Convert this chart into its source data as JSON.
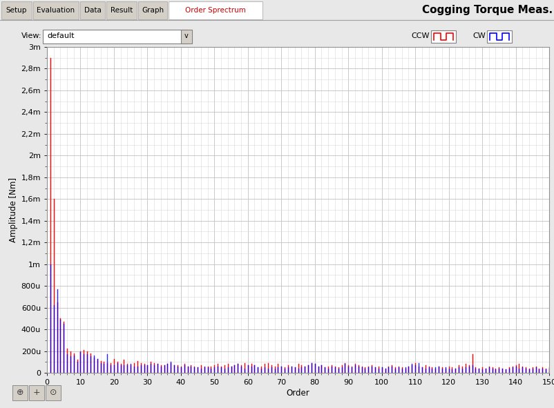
{
  "title": "Cogging Torque Meas.",
  "ylabel": "Amplitude [Nm]",
  "xlabel": "Order",
  "xlim": [
    0,
    150
  ],
  "ylim": [
    0,
    0.003
  ],
  "yticks": [
    0,
    0.0002,
    0.0004,
    0.0006,
    0.0008,
    0.001,
    0.0012,
    0.0014,
    0.0016,
    0.0018,
    0.002,
    0.0022,
    0.0024,
    0.0026,
    0.0028,
    0.003
  ],
  "ytick_labels": [
    "0",
    "200u",
    "400u",
    "600u",
    "800u",
    "1m",
    "1,2m",
    "1,4m",
    "1,6m",
    "1,8m",
    "2m",
    "2,2m",
    "2,4m",
    "2,6m",
    "2,8m",
    "3m"
  ],
  "xticks": [
    0,
    10,
    20,
    30,
    40,
    50,
    60,
    70,
    80,
    90,
    100,
    110,
    120,
    130,
    140,
    150
  ],
  "bg_color": "#e8e8e8",
  "toolbar_bg": "#d4d0c8",
  "tab_active_bg": "#ffffff",
  "tab_inactive_bg": "#d4d0c8",
  "plot_bg": "#ffffff",
  "grid_color_major": "#c0c0c0",
  "grid_color_minor": "#d8d8d8",
  "ccw_color": "#ff0000",
  "cw_color": "#0000ff",
  "tab_labels": [
    "Setup",
    "Evaluation",
    "Data",
    "Result",
    "Graph",
    "Order Sprectrum"
  ],
  "view_value": "default",
  "ccw_label": "CCW",
  "cw_label": "CW",
  "ccw_data": [
    0.0029,
    0.0016,
    0.00065,
    0.0005,
    0.00047,
    0.00022,
    0.0002,
    0.00018,
    0.00012,
    0.0002,
    0.00021,
    0.0002,
    0.00018,
    0.00014,
    0.00013,
    0.00011,
    0.0001,
    9e-05,
    9e-05,
    0.00013,
    0.0001,
    8e-05,
    0.00012,
    8e-05,
    7e-05,
    9e-05,
    0.00011,
    9e-05,
    8e-05,
    7e-05,
    0.0001,
    9e-05,
    8e-05,
    7e-05,
    7e-05,
    8e-05,
    9e-05,
    7e-05,
    7e-05,
    6e-05,
    8e-05,
    6e-05,
    7e-05,
    6e-05,
    5e-05,
    7e-05,
    5e-05,
    6e-05,
    6e-05,
    7e-05,
    8e-05,
    6e-05,
    7e-05,
    8e-05,
    6e-05,
    7e-05,
    8e-05,
    7e-05,
    9e-05,
    7e-05,
    8e-05,
    7e-05,
    5e-05,
    6e-05,
    8e-05,
    9e-05,
    7e-05,
    6e-05,
    8e-05,
    6e-05,
    5e-05,
    7e-05,
    6e-05,
    5e-05,
    8e-05,
    7e-05,
    6e-05,
    7e-05,
    9e-05,
    8e-05,
    6e-05,
    7e-05,
    5e-05,
    6e-05,
    7e-05,
    6e-05,
    5e-05,
    7e-05,
    9e-05,
    7e-05,
    6e-05,
    8e-05,
    7e-05,
    6e-05,
    5e-05,
    6e-05,
    7e-05,
    5e-05,
    6e-05,
    5e-05,
    4e-05,
    6e-05,
    7e-05,
    5e-05,
    6e-05,
    5e-05,
    4e-05,
    6e-05,
    7e-05,
    9e-05,
    6e-05,
    5e-05,
    7e-05,
    6e-05,
    5e-05,
    4e-05,
    6e-05,
    5e-05,
    4e-05,
    6e-05,
    5e-05,
    4e-05,
    7e-05,
    6e-05,
    8e-05,
    7e-05,
    0.00017,
    5e-05,
    4e-05,
    5e-05,
    4e-05,
    6e-05,
    5e-05,
    4e-05,
    5e-05,
    4e-05,
    3e-05,
    5e-05,
    6e-05,
    7e-05,
    8e-05,
    6e-05,
    5e-05,
    4e-05,
    5e-05,
    6e-05,
    4e-05,
    5e-05,
    4e-05,
    5e-05,
    6e-05
  ],
  "cw_data": [
    0.001,
    0.00062,
    0.00077,
    0.00049,
    0.00045,
    0.00017,
    0.00015,
    0.00016,
    0.0001,
    0.00019,
    0.00017,
    0.00017,
    0.00015,
    0.00016,
    0.00013,
    9e-05,
    8e-05,
    0.00017,
    7e-05,
    7e-05,
    9e-05,
    7e-05,
    7e-05,
    7e-05,
    8e-05,
    6e-05,
    6e-05,
    7e-05,
    7e-05,
    7e-05,
    8e-05,
    7e-05,
    8e-05,
    6e-05,
    7e-05,
    8e-05,
    0.0001,
    7e-05,
    6e-05,
    5e-05,
    7e-05,
    6e-05,
    6e-05,
    5e-05,
    5e-05,
    4e-05,
    6e-05,
    5e-05,
    4e-05,
    5e-05,
    6e-05,
    5e-05,
    4e-05,
    5e-05,
    6e-05,
    7e-05,
    8e-05,
    6e-05,
    4e-05,
    7e-05,
    6e-05,
    7e-05,
    5e-05,
    4e-05,
    5e-05,
    4e-05,
    5e-05,
    4e-05,
    5e-05,
    6e-05,
    4e-05,
    5e-05,
    6e-05,
    5e-05,
    4e-05,
    5e-05,
    6e-05,
    7e-05,
    9e-05,
    8e-05,
    6e-05,
    7e-05,
    5e-05,
    4e-05,
    6e-05,
    5e-05,
    4e-05,
    5e-05,
    8e-05,
    6e-05,
    5e-05,
    7e-05,
    6e-05,
    5e-05,
    4e-05,
    5e-05,
    6e-05,
    5e-05,
    4e-05,
    5e-05,
    4e-05,
    5e-05,
    6e-05,
    4e-05,
    5e-05,
    4e-05,
    5e-05,
    6e-05,
    8e-05,
    7e-05,
    9e-05,
    5e-05,
    4e-05,
    5e-05,
    4e-05,
    5e-05,
    6e-05,
    4e-05,
    5e-05,
    4e-05,
    3e-05,
    4e-05,
    5e-05,
    4e-05,
    5e-05,
    6e-05,
    7e-05,
    4e-05,
    4e-05,
    3e-05,
    4e-05,
    5e-05,
    4e-05,
    3e-05,
    4e-05,
    4e-05,
    3e-05,
    4e-05,
    5e-05,
    6e-05,
    4e-05,
    5e-05,
    4e-05,
    3e-05,
    4e-05,
    5e-05,
    3e-05,
    4e-05,
    3e-05,
    4e-05,
    5e-05
  ]
}
